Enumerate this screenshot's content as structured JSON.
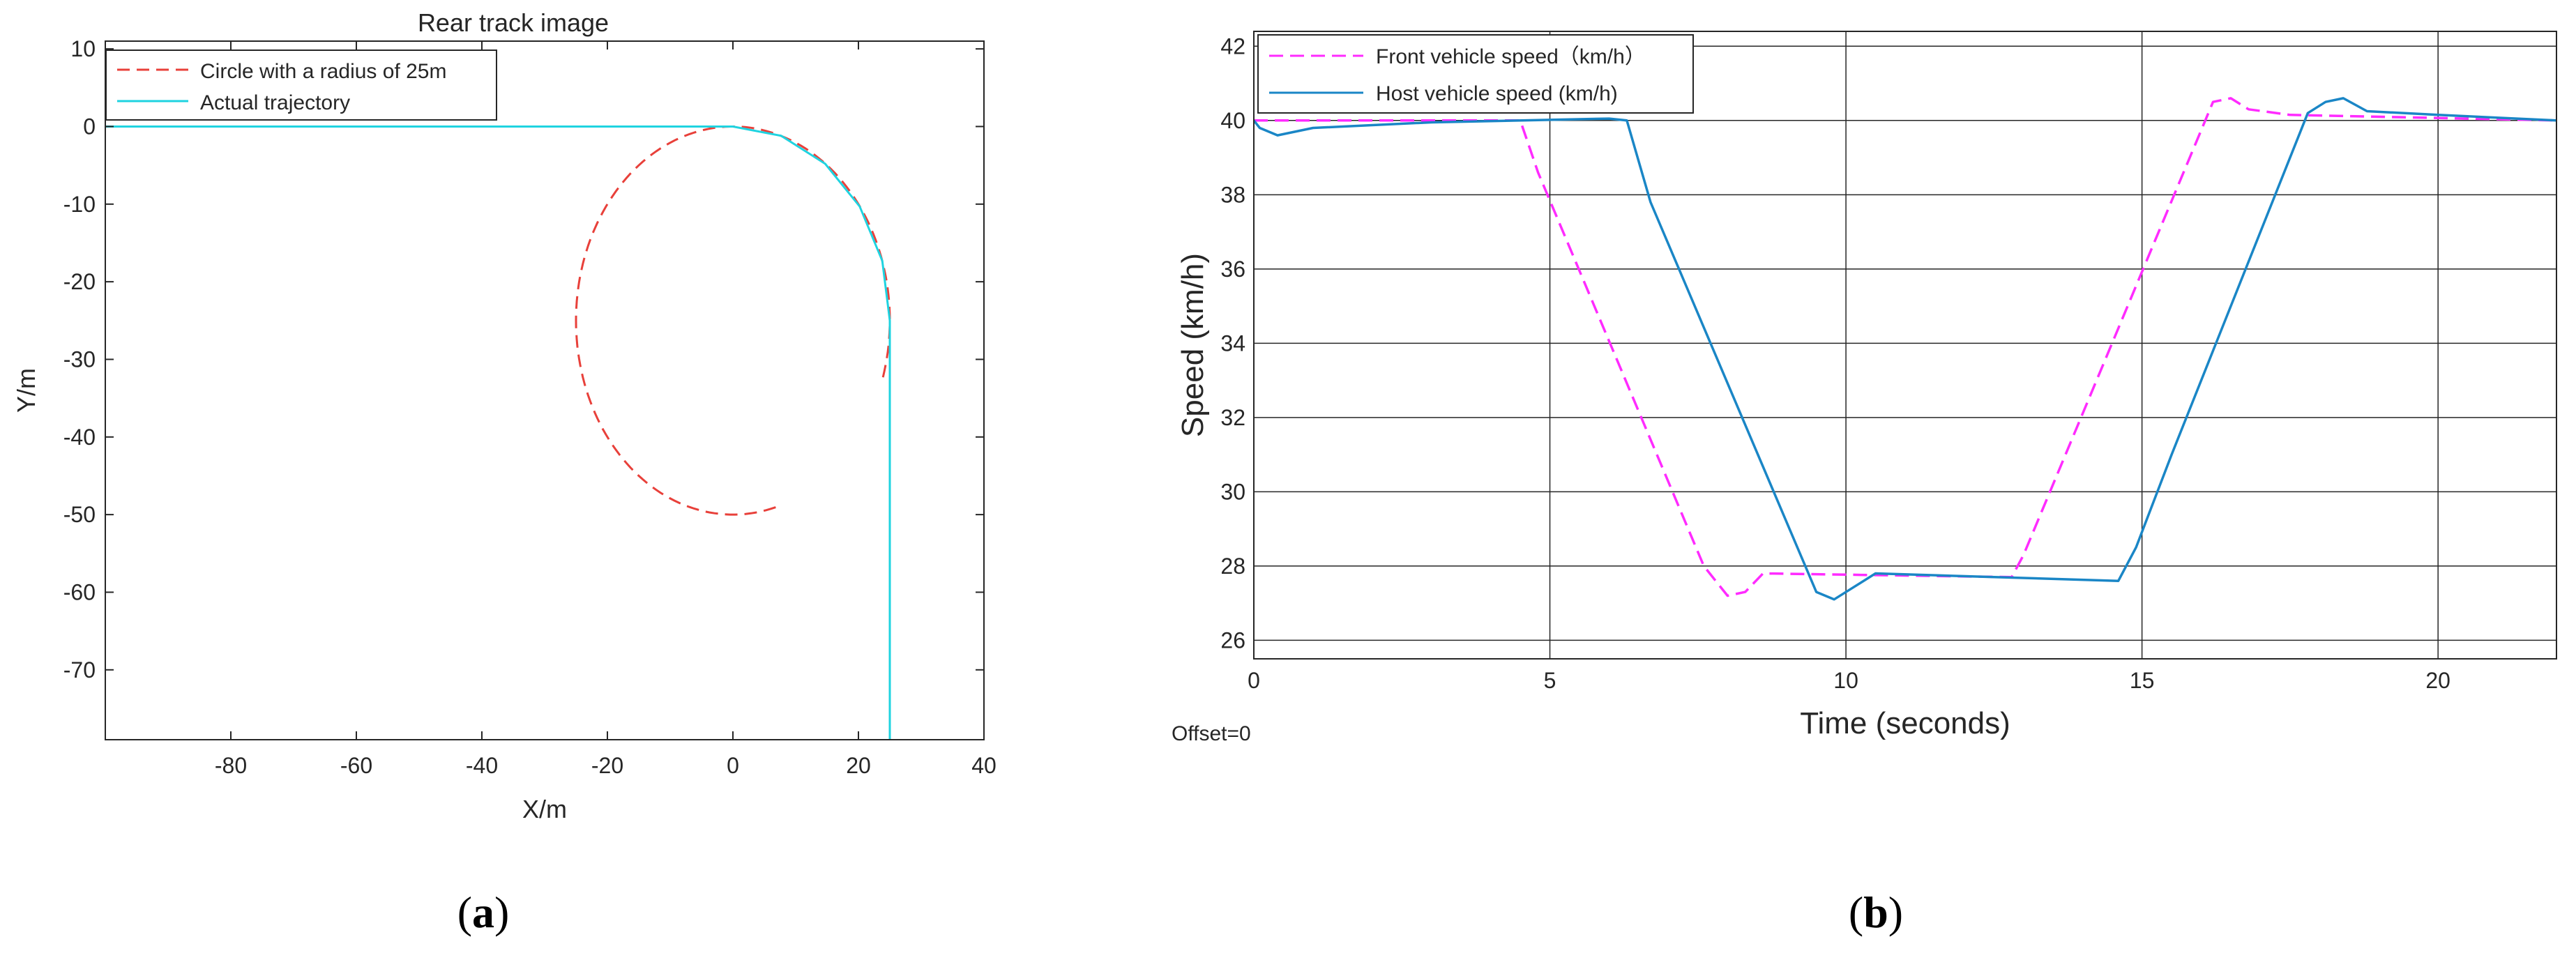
{
  "panels": {
    "a": {
      "caption_open": "(",
      "caption_letter": "a",
      "caption_close": ")"
    },
    "b": {
      "caption_open": "(",
      "caption_letter": "b",
      "caption_close": ")"
    }
  },
  "chart_data": [
    {
      "type": "line",
      "title": "Rear track image",
      "xlabel": "X/m",
      "ylabel": "Y/m",
      "xlim": [
        -100,
        40
      ],
      "ylim": [
        -79,
        11
      ],
      "xticks": [
        -80,
        -60,
        -40,
        -20,
        0,
        20,
        40
      ],
      "yticks": [
        10,
        0,
        -10,
        -20,
        -30,
        -40,
        -50,
        -60,
        -70
      ],
      "grid": false,
      "legend_position": "top-left",
      "series": [
        {
          "name": "Circle with a radius of 25m",
          "color": "#e8403a",
          "dash": "dashed",
          "center": [
            0,
            -25
          ],
          "radius": 25,
          "arc_degrees": [
            -17,
            286
          ]
        },
        {
          "name": "Actual trajectory",
          "color": "#1fd3e0",
          "dash": "solid",
          "points": [
            [
              -100,
              0
            ],
            [
              0,
              0
            ],
            [
              7.7,
              -1.2
            ],
            [
              14.7,
              -4.8
            ],
            [
              20.2,
              -10.3
            ],
            [
              23.8,
              -17.3
            ],
            [
              25,
              -25
            ],
            [
              25,
              -79
            ]
          ]
        }
      ]
    },
    {
      "type": "line",
      "title": "",
      "xlabel": "Time (seconds)",
      "ylabel": "Speed (km/h)",
      "xlim": [
        0,
        22
      ],
      "ylim": [
        25.5,
        42.4
      ],
      "xticks": [
        0,
        5,
        10,
        15,
        20
      ],
      "yticks": [
        26,
        28,
        30,
        32,
        34,
        36,
        38,
        40,
        42
      ],
      "grid": true,
      "legend_position": "top-left",
      "annotation": "Offset=0",
      "series": [
        {
          "name": "Front vehicle speed（km/h）",
          "color": "#ff2bff",
          "dash": "dashed",
          "points": [
            [
              0,
              40
            ],
            [
              4.5,
              40
            ],
            [
              4.8,
              38.6
            ],
            [
              7.6,
              28
            ],
            [
              8.0,
              27.2
            ],
            [
              8.3,
              27.3
            ],
            [
              8.6,
              27.8
            ],
            [
              12.8,
              27.7
            ],
            [
              13.0,
              28.3
            ],
            [
              16.2,
              40.5
            ],
            [
              16.5,
              40.6
            ],
            [
              16.8,
              40.3
            ],
            [
              17.5,
              40.15
            ],
            [
              22,
              40
            ]
          ]
        },
        {
          "name": "Host vehicle speed (km/h)",
          "color": "#1a86c6",
          "dash": "solid",
          "points": [
            [
              0,
              40
            ],
            [
              0.1,
              39.8
            ],
            [
              0.4,
              39.6
            ],
            [
              1.0,
              39.8
            ],
            [
              3.0,
              39.95
            ],
            [
              6.0,
              40.05
            ],
            [
              6.3,
              40
            ],
            [
              6.7,
              37.8
            ],
            [
              9.5,
              27.3
            ],
            [
              9.8,
              27.1
            ],
            [
              10.1,
              27.4
            ],
            [
              10.5,
              27.8
            ],
            [
              14.6,
              27.6
            ],
            [
              14.9,
              28.5
            ],
            [
              15.5,
              31.0
            ],
            [
              17.8,
              40.2
            ],
            [
              18.1,
              40.5
            ],
            [
              18.4,
              40.6
            ],
            [
              18.8,
              40.25
            ],
            [
              20,
              40.15
            ],
            [
              22,
              40.0
            ]
          ]
        }
      ]
    }
  ]
}
